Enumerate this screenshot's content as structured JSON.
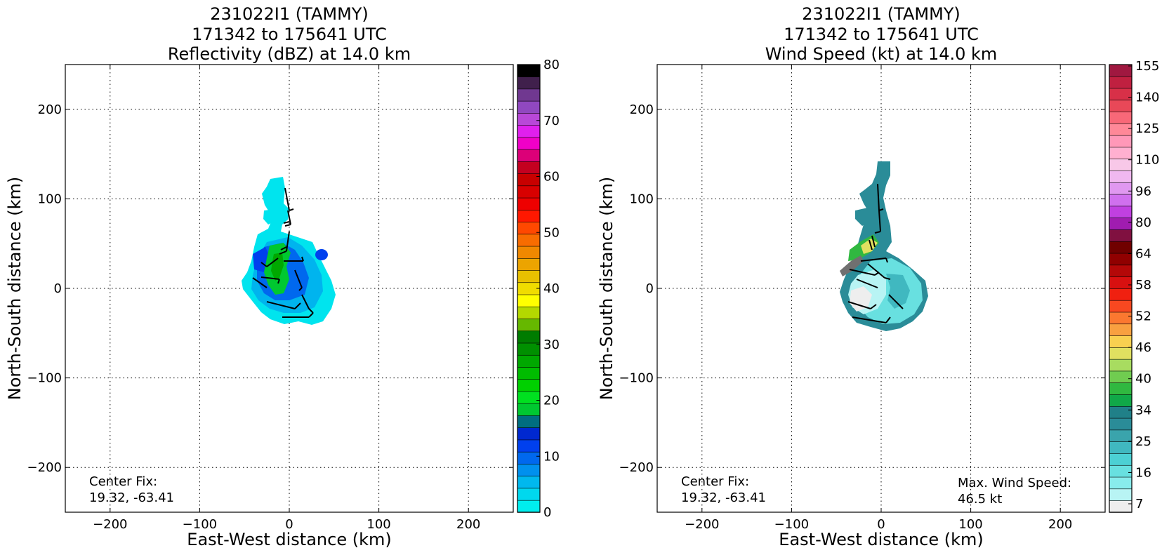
{
  "chart_data": [
    {
      "type": "heatmap",
      "title_lines": [
        "231022I1 (TAMMY)",
        "171342 to 175641 UTC",
        "Reflectivity (dBZ) at 14.0 km"
      ],
      "xlabel": "East-West distance (km)",
      "ylabel": "North-South distance (km)",
      "xlim": [
        -250,
        250
      ],
      "ylim": [
        -250,
        250
      ],
      "x_ticks": [
        -200,
        -100,
        0,
        100,
        200
      ],
      "y_ticks": [
        -200,
        -100,
        0,
        100,
        200
      ],
      "grid": true,
      "center_fix_label": "Center Fix:",
      "center_fix_value": "19.32, -63.41",
      "colorbar": {
        "min": 0,
        "max": 80,
        "ticks": [
          0,
          10,
          20,
          30,
          40,
          50,
          60,
          70,
          80
        ],
        "colors": [
          "#00eeee",
          "#00d8ee",
          "#00b8ee",
          "#0090ee",
          "#0068ee",
          "#0040ee",
          "#0028d0",
          "#006e80",
          "#00c830",
          "#00e020",
          "#00d000",
          "#00bc00",
          "#00a800",
          "#009000",
          "#007c00",
          "#66b800",
          "#b4d800",
          "#ffff00",
          "#f0dc00",
          "#e8c000",
          "#eca400",
          "#f08800",
          "#f86c00",
          "#ff4800",
          "#ff1800",
          "#ee0000",
          "#d80000",
          "#c80000",
          "#c40020",
          "#dc0078",
          "#f000c8",
          "#e020ee",
          "#b848d8",
          "#9048c0",
          "#703890",
          "#40204c",
          "#000000"
        ]
      },
      "echo_region": {
        "extent_km": "approx. x -55 to 55, y -40 to 120",
        "max_dbz_approx": 25
      }
    },
    {
      "type": "heatmap",
      "title_lines": [
        "231022I1 (TAMMY)",
        "171342 to 175641 UTC",
        "Wind Speed (kt) at 14.0 km"
      ],
      "xlabel": "East-West distance (km)",
      "ylabel": "North-South distance (km)",
      "xlim": [
        -250,
        250
      ],
      "ylim": [
        -250,
        250
      ],
      "x_ticks": [
        -200,
        -100,
        0,
        100,
        200
      ],
      "y_ticks": [
        -200,
        -100,
        0,
        100,
        200
      ],
      "grid": true,
      "center_fix_label": "Center Fix:",
      "center_fix_value": "19.32, -63.41",
      "max_wind_label": "Max. Wind Speed:",
      "max_wind_value": "46.5 kt",
      "colorbar": {
        "tick_labels": [
          "7",
          "16",
          "25",
          "34",
          "40",
          "46",
          "52",
          "58",
          "64",
          "80",
          "96",
          "110",
          "125",
          "140",
          "155"
        ],
        "colors": [
          "#eeeeee",
          "#b8f4f4",
          "#88ecec",
          "#68e0e0",
          "#4cd0d4",
          "#40b8c0",
          "#3aa4ac",
          "#2a8c98",
          "#208088",
          "#10a848",
          "#30b840",
          "#70cc50",
          "#a8dc60",
          "#e0e060",
          "#f8d050",
          "#f8a040",
          "#fb7830",
          "#f84820",
          "#f02010",
          "#d81010",
          "#b40808",
          "#900000",
          "#700000",
          "#801040",
          "#a01cb0",
          "#c040e0",
          "#d070ee",
          "#e098f0",
          "#f0b8f0",
          "#f8c8e8",
          "#ffb0d0",
          "#ff98b8",
          "#ff8898",
          "#f86878",
          "#e84858",
          "#d83048",
          "#c02040",
          "#a01840"
        ]
      },
      "wind_region": {
        "extent_km": "approx. x -55 to 55, y -45 to 140",
        "max_kt": 46.5
      }
    }
  ]
}
